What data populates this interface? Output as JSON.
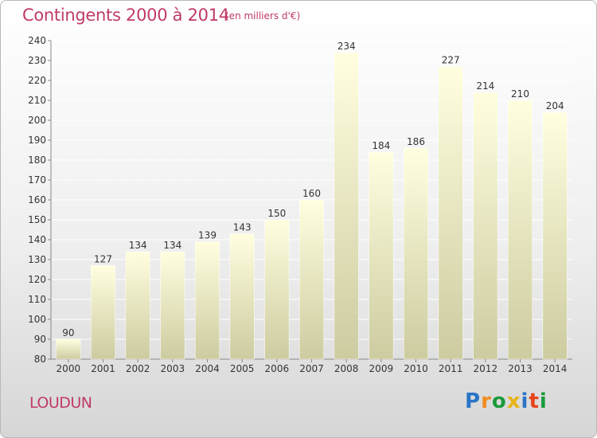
{
  "header": {
    "title": "Contingents 2000 à 2014",
    "subtitle": "(en milliers d'€)"
  },
  "footer": {
    "commune": "LOUDUN",
    "logo": "Proxiti"
  },
  "colors": {
    "accent": "#c03a6a",
    "bar_top": "#ffffe0",
    "bar_bottom": "#cdcba0",
    "logo_p": "#2a74c8",
    "logo_r": "#f08c1e",
    "logo_o": "#1a9a3a",
    "logo_x": "#e8b416",
    "logo_i": "#2a74c8",
    "logo_t": "#e8431c",
    "logo_i2": "#1a9a3a"
  },
  "chart_data": {
    "type": "bar",
    "title": "Contingents 2000 à 2014",
    "subtitle": "(en milliers d'€)",
    "categories": [
      "2000",
      "2001",
      "2002",
      "2003",
      "2004",
      "2005",
      "2006",
      "2007",
      "2008",
      "2009",
      "2010",
      "2011",
      "2012",
      "2013",
      "2014"
    ],
    "values": [
      90,
      127,
      134,
      134,
      139,
      143,
      150,
      160,
      234,
      184,
      186,
      227,
      214,
      210,
      204
    ],
    "ylim": [
      80,
      240
    ],
    "yticks": [
      80,
      90,
      100,
      110,
      120,
      130,
      140,
      150,
      160,
      170,
      180,
      190,
      200,
      210,
      220,
      230,
      240
    ],
    "grid": true,
    "data_labels": true
  }
}
